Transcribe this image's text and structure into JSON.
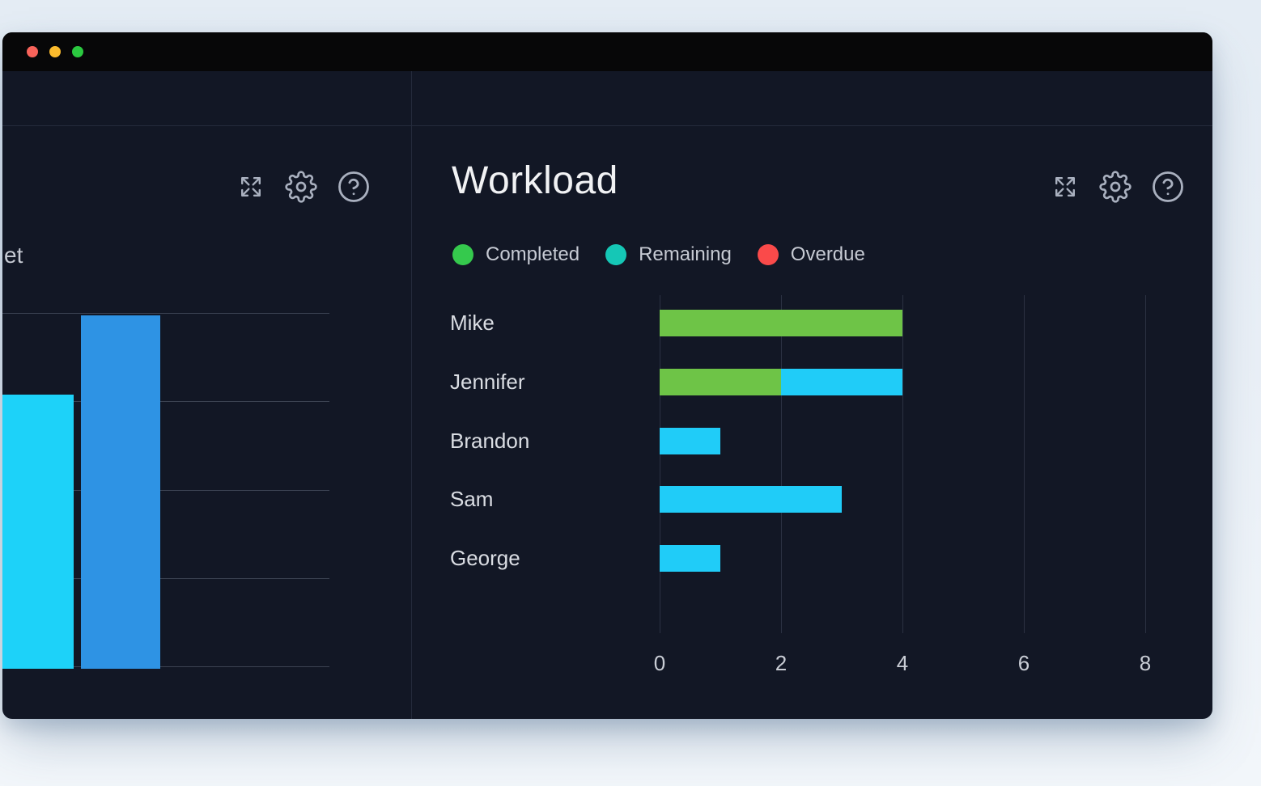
{
  "window": {
    "titlebar": {
      "controls": [
        "close-button",
        "minimize-button",
        "zoom-button"
      ]
    }
  },
  "left_widget": {
    "visible_label_fragment": "et",
    "toolbar_icons": [
      "expand-icon",
      "gear-icon",
      "help-icon"
    ]
  },
  "workload_widget": {
    "title": "Workload",
    "toolbar_icons": [
      "expand-icon",
      "gear-icon",
      "help-icon"
    ],
    "legend": [
      {
        "label": "Completed",
        "color": "#35c94d"
      },
      {
        "label": "Remaining",
        "color": "#15c7b6"
      },
      {
        "label": "Overdue",
        "color": "#fa4a4a"
      }
    ]
  },
  "chart_data": [
    {
      "id": "left_bar_chart",
      "type": "bar",
      "orientation": "vertical",
      "title": "",
      "categories": [
        "",
        ""
      ],
      "values": [
        3.1,
        4
      ],
      "colors": [
        "#1dd2f9",
        "#2e93e4"
      ],
      "ylim": [
        0,
        4
      ],
      "grid": true
    },
    {
      "id": "workload_chart",
      "type": "bar",
      "orientation": "horizontal",
      "stacked": true,
      "title": "Workload",
      "categories": [
        "Mike",
        "Jennifer",
        "Brandon",
        "Sam",
        "George"
      ],
      "series": [
        {
          "name": "Completed",
          "color": "#6ec447",
          "values": [
            4,
            2,
            0,
            0,
            0
          ]
        },
        {
          "name": "Remaining",
          "color": "#20ccf8",
          "values": [
            0,
            2,
            1,
            3,
            1
          ]
        },
        {
          "name": "Overdue",
          "color": "#fa4a4a",
          "values": [
            0,
            0,
            0,
            0,
            0
          ]
        }
      ],
      "xticks": [
        0,
        2,
        4,
        6,
        8
      ],
      "xlim": [
        0,
        8
      ],
      "xlabel": "",
      "ylabel": "",
      "legend_position": "top",
      "grid": true
    }
  ],
  "colors": {
    "page_bg_top": "#e4ecf4",
    "page_bg_bottom": "#f2f6fa",
    "window_titlebar": "#070708",
    "panel_bg": "#121725",
    "divider": "#242b3c",
    "gridline_left": "#3b4252",
    "gridline_workload": "#2b3142",
    "traffic_close": "#f8635a",
    "traffic_minimize": "#fbbb2d",
    "traffic_zoom": "#2bc940",
    "icon": "#a9b0bf",
    "text_primary": "#f1f2f4",
    "text_secondary": "#c6cad3"
  }
}
